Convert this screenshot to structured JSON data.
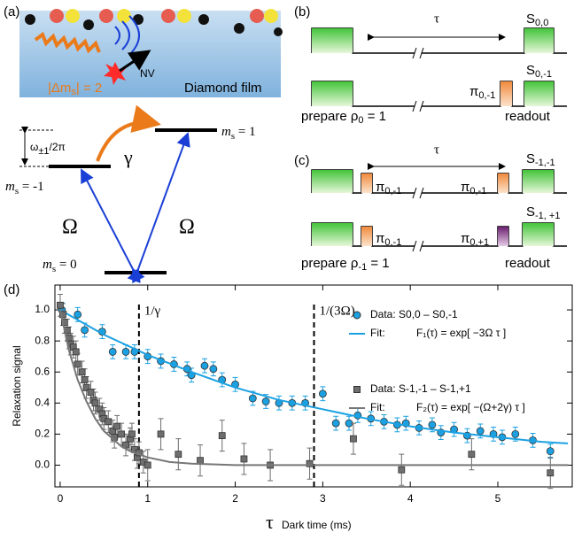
{
  "panel_a": {
    "label": "(a)",
    "nv": "NV",
    "delta_ms": {
      "main": "|Δm",
      "sub": "s",
      "rest": "| = 2"
    },
    "film": "Diamond film",
    "splitting": {
      "main": "ω",
      "sub": "±1",
      "rest": "/2π"
    },
    "gamma": "γ",
    "levels": [
      {
        "main": "m",
        "sub": "s",
        "rest": " = 1"
      },
      {
        "main": "m",
        "sub": "s",
        "rest": " = -1"
      },
      {
        "main": "m",
        "sub": "s",
        "rest": " = 0"
      }
    ],
    "omega_left": "Ω",
    "omega_right": "Ω"
  },
  "panel_b": {
    "label": "(b)",
    "tau": "τ",
    "s_top": {
      "main": "S",
      "sub": "0,0"
    },
    "s_bottom": {
      "main": "S",
      "sub": "0,-1"
    },
    "pi": {
      "main": "π",
      "sub": "0,-1"
    },
    "prepare": {
      "main": "prepare ρ",
      "sub": "0",
      "rest": " = 1"
    },
    "readout": "readout"
  },
  "panel_c": {
    "label": "(c)",
    "tau": "τ",
    "s_top": {
      "main": "S",
      "sub": "-1,-1"
    },
    "s_bottom": {
      "main": "S",
      "sub": "-1, +1"
    },
    "pi_top_1": {
      "main": "π",
      "sub": "0,-1"
    },
    "pi_top_2": {
      "main": "π",
      "sub": "0,-1"
    },
    "pi_bottom_1": {
      "main": "π",
      "sub": "0,-1"
    },
    "pi_bottom_2": {
      "main": "π",
      "sub": "0,+1"
    },
    "prepare": {
      "main": "prepare ρ",
      "sub": "-1",
      "rest": " = 1"
    },
    "readout": "readout"
  },
  "chart_data": {
    "type": "scatter",
    "panel_label": "(d)",
    "x_label": "Dark time (ms)",
    "x_symbol": "τ",
    "y_label": "Relaxation signal",
    "xlim": [
      -0.06,
      5.85
    ],
    "ylim": [
      -0.14,
      1.16
    ],
    "xticks": [
      0,
      1,
      2,
      3,
      4,
      5
    ],
    "yticks": [
      {
        "value": 0,
        "label": "0.0"
      },
      0.2,
      0.4,
      0.6,
      0.8,
      {
        "value": 1,
        "label": "1.0"
      }
    ],
    "vlines": [
      {
        "x": 0.9,
        "label": "1/γ"
      },
      {
        "x": 2.9,
        "label": "1/(3Ω)"
      }
    ],
    "series": [
      {
        "name": "Data: S0,0 – S0,-1",
        "color": "#1ba1e2",
        "marker": "circle",
        "x": [
          0.02,
          0.2,
          0.28,
          0.48,
          0.6,
          0.75,
          0.85,
          1.0,
          1.15,
          1.3,
          1.45,
          1.5,
          1.65,
          1.75,
          1.85,
          2.0,
          2.2,
          2.35,
          2.5,
          2.65,
          2.8,
          3.0,
          3.15,
          3.3,
          3.4,
          3.55,
          3.7,
          3.85,
          3.95,
          4.1,
          4.25,
          4.35,
          4.5,
          4.65,
          4.8,
          4.95,
          5.05,
          5.2,
          5.4,
          5.6
        ],
        "values": [
          1.0,
          0.97,
          0.87,
          0.86,
          0.73,
          0.73,
          0.73,
          0.7,
          0.67,
          0.65,
          0.62,
          0.58,
          0.64,
          0.62,
          0.55,
          0.52,
          0.43,
          0.41,
          0.4,
          0.4,
          0.4,
          0.46,
          0.27,
          0.27,
          0.32,
          0.3,
          0.28,
          0.26,
          0.27,
          0.24,
          0.26,
          0.21,
          0.23,
          0.19,
          0.22,
          0.2,
          0.18,
          0.2,
          0.16,
          0.09
        ],
        "errors": [
          0.045,
          0.045,
          0.045,
          0.045,
          0.045,
          0.045,
          0.045,
          0.045,
          0.045,
          0.045,
          0.045,
          0.045,
          0.045,
          0.045,
          0.045,
          0.045,
          0.045,
          0.045,
          0.045,
          0.045,
          0.045,
          0.045,
          0.045,
          0.045,
          0.045,
          0.045,
          0.045,
          0.045,
          0.045,
          0.045,
          0.045,
          0.045,
          0.045,
          0.045,
          0.045,
          0.045,
          0.045,
          0.045,
          0.045,
          0.045
        ]
      },
      {
        "name": "Fit:",
        "formula": "F₁(τ)  = exp[ −3Ω τ ]",
        "color": "#1ba1e2",
        "marker": "line",
        "x": [
          0,
          0.5,
          1,
          1.5,
          2,
          2.5,
          3,
          3.5,
          4,
          4.5,
          5,
          5.5,
          5.8
        ],
        "values": [
          1,
          0.84,
          0.71,
          0.6,
          0.5,
          0.42,
          0.36,
          0.3,
          0.25,
          0.21,
          0.18,
          0.15,
          0.14
        ]
      },
      {
        "name": "Data: S-1,-1 – S-1,+1",
        "color": "#6e6e6e",
        "marker": "square",
        "x": [
          0.0,
          0.03,
          0.05,
          0.08,
          0.1,
          0.12,
          0.15,
          0.18,
          0.2,
          0.25,
          0.28,
          0.3,
          0.35,
          0.38,
          0.4,
          0.45,
          0.48,
          0.5,
          0.55,
          0.6,
          0.62,
          0.65,
          0.7,
          0.75,
          0.8,
          0.82,
          0.85,
          0.88,
          0.9,
          0.95,
          1.0,
          1.15,
          1.35,
          1.6,
          1.85,
          2.1,
          2.4,
          2.85,
          3.35,
          3.9,
          4.7,
          5.6
        ],
        "values": [
          1.03,
          0.97,
          0.92,
          0.87,
          0.82,
          0.78,
          0.76,
          0.73,
          0.65,
          0.6,
          0.55,
          0.5,
          0.47,
          0.42,
          0.4,
          0.36,
          0.33,
          0.3,
          0.28,
          0.22,
          0.18,
          0.25,
          0.2,
          0.13,
          0.17,
          0.2,
          0.1,
          0.05,
          0.08,
          0.02,
          0.0,
          0.2,
          0.07,
          0.03,
          0.19,
          0.04,
          0.0,
          0.01,
          0.17,
          -0.03,
          0.07,
          -0.05
        ],
        "errors": [
          0.07,
          0.07,
          0.07,
          0.07,
          0.07,
          0.07,
          0.07,
          0.07,
          0.07,
          0.07,
          0.07,
          0.07,
          0.07,
          0.07,
          0.07,
          0.07,
          0.07,
          0.07,
          0.07,
          0.07,
          0.07,
          0.07,
          0.07,
          0.07,
          0.07,
          0.07,
          0.07,
          0.07,
          0.07,
          0.07,
          0.1,
          0.1,
          0.1,
          0.1,
          0.1,
          0.1,
          0.1,
          0.1,
          0.1,
          0.1,
          0.1,
          0.1
        ]
      },
      {
        "name": "Fit:",
        "formula": "F₂(τ)  = exp[ −(Ω+2γ) τ ]",
        "color": "#777777",
        "marker": "line",
        "x": [
          0,
          0.1,
          0.2,
          0.3,
          0.4,
          0.5,
          0.6,
          0.7,
          0.8,
          0.9,
          1,
          1.25,
          1.5,
          2,
          3,
          4,
          5,
          5.8
        ],
        "values": [
          1,
          0.74,
          0.55,
          0.41,
          0.3,
          0.22,
          0.17,
          0.12,
          0.09,
          0.07,
          0.05,
          0.02,
          0.01,
          0,
          0,
          0,
          0,
          0
        ]
      }
    ]
  }
}
